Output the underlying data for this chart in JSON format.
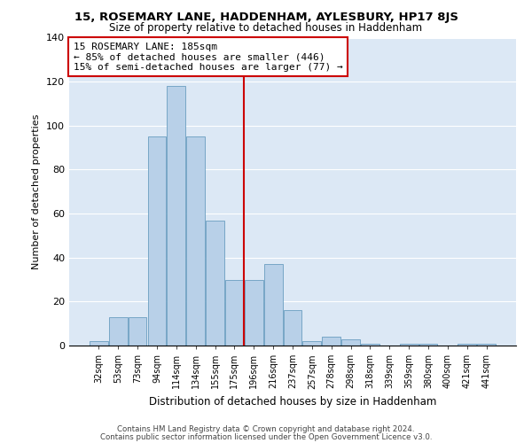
{
  "title": "15, ROSEMARY LANE, HADDENHAM, AYLESBURY, HP17 8JS",
  "subtitle": "Size of property relative to detached houses in Haddenham",
  "xlabel": "Distribution of detached houses by size in Haddenham",
  "ylabel": "Number of detached properties",
  "footnote1": "Contains HM Land Registry data © Crown copyright and database right 2024.",
  "footnote2": "Contains public sector information licensed under the Open Government Licence v3.0.",
  "categories": [
    "32sqm",
    "53sqm",
    "73sqm",
    "94sqm",
    "114sqm",
    "134sqm",
    "155sqm",
    "175sqm",
    "196sqm",
    "216sqm",
    "237sqm",
    "257sqm",
    "278sqm",
    "298sqm",
    "318sqm",
    "339sqm",
    "359sqm",
    "380sqm",
    "400sqm",
    "421sqm",
    "441sqm"
  ],
  "values": [
    2,
    13,
    13,
    95,
    118,
    95,
    57,
    30,
    30,
    37,
    16,
    2,
    4,
    3,
    1,
    0,
    1,
    1,
    0,
    1,
    1
  ],
  "bar_color": "#b8d0e8",
  "bar_edge_color": "#6a9ec0",
  "background_color": "#dce8f5",
  "grid_color": "#ffffff",
  "red_line_index": 7.5,
  "annotation_line1": "15 ROSEMARY LANE: 185sqm",
  "annotation_line2": "← 85% of detached houses are smaller (446)",
  "annotation_line3": "15% of semi-detached houses are larger (77) →",
  "red_line_color": "#cc0000",
  "ylim": [
    0,
    140
  ],
  "yticks": [
    0,
    20,
    40,
    60,
    80,
    100,
    120,
    140
  ]
}
